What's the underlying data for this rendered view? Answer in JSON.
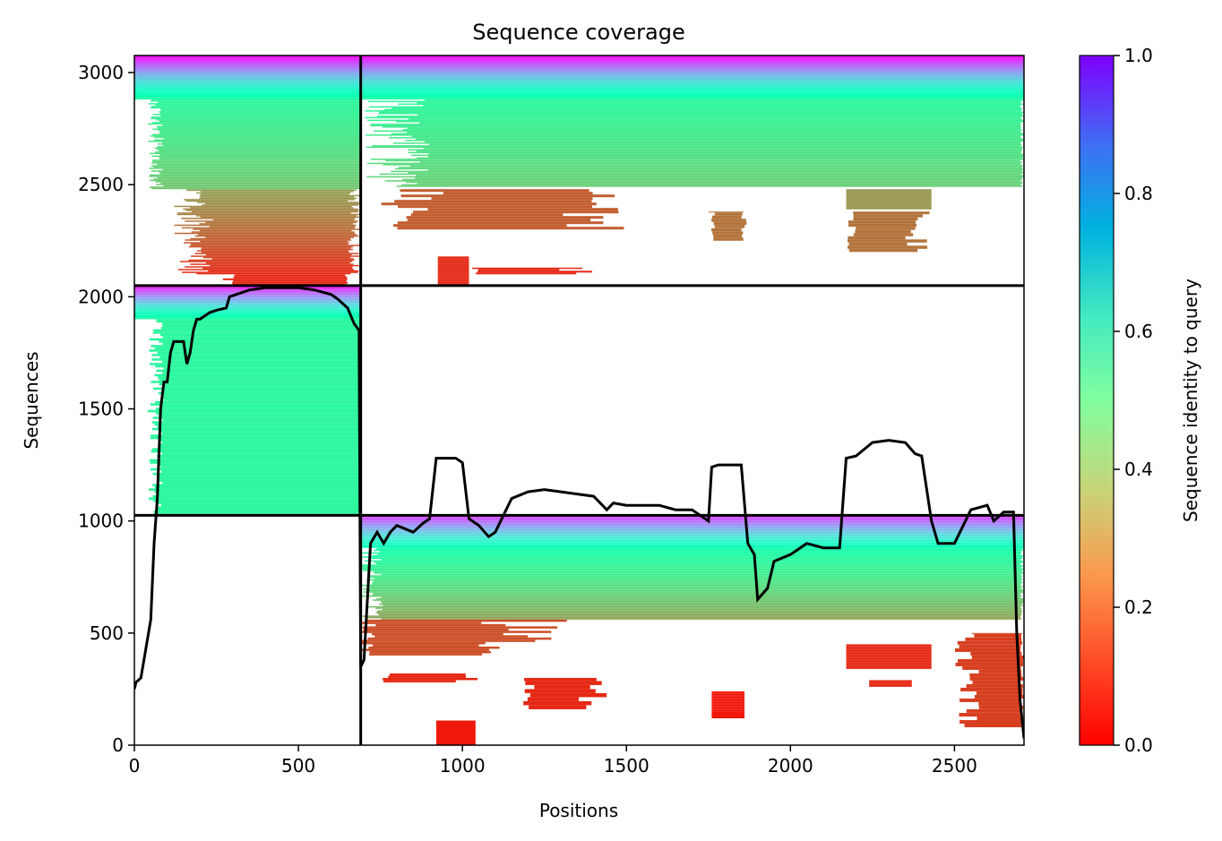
{
  "chart_data": {
    "type": "heatmap",
    "title": "Sequence coverage",
    "xlabel": "Positions",
    "ylabel": "Sequences",
    "xlim": [
      0,
      2712
    ],
    "ylim": [
      0,
      3076
    ],
    "x_ticks": [
      0,
      500,
      1000,
      1500,
      2000,
      2500
    ],
    "y_ticks": [
      0,
      500,
      1000,
      1500,
      2000,
      2500,
      3000
    ],
    "colorbar": {
      "label": "Sequence identity to query",
      "range": [
        0.0,
        1.0
      ],
      "ticks": [
        "0.0",
        "0.2",
        "0.4",
        "0.6",
        "0.8",
        "1.0"
      ],
      "colormap": "rainbow"
    },
    "dividers": {
      "x": [
        690
      ],
      "y": [
        1025,
        2050
      ]
    },
    "coverage_line": {
      "x": [
        0,
        5,
        20,
        50,
        60,
        70,
        80,
        90,
        100,
        110,
        120,
        130,
        140,
        150,
        160,
        170,
        180,
        190,
        200,
        230,
        250,
        280,
        290,
        350,
        400,
        450,
        500,
        550,
        600,
        620,
        650,
        670,
        685,
        690,
        700,
        720,
        740,
        760,
        780,
        800,
        850,
        880,
        900,
        920,
        950,
        980,
        1000,
        1020,
        1030,
        1050,
        1080,
        1100,
        1150,
        1200,
        1250,
        1300,
        1350,
        1400,
        1440,
        1460,
        1500,
        1550,
        1600,
        1650,
        1700,
        1750,
        1760,
        1780,
        1800,
        1850,
        1870,
        1890,
        1900,
        1930,
        1950,
        2000,
        2050,
        2100,
        2150,
        2170,
        2200,
        2250,
        2300,
        2350,
        2380,
        2400,
        2430,
        2450,
        2500,
        2550,
        2600,
        2620,
        2650,
        2680,
        2690,
        2700,
        2712
      ],
      "y": [
        250,
        280,
        300,
        560,
        900,
        1100,
        1500,
        1620,
        1620,
        1750,
        1800,
        1800,
        1800,
        1800,
        1700,
        1750,
        1850,
        1900,
        1900,
        1930,
        1940,
        1950,
        2000,
        2030,
        2040,
        2040,
        2040,
        2030,
        2010,
        1990,
        1950,
        1880,
        1850,
        350,
        380,
        900,
        950,
        900,
        950,
        980,
        950,
        990,
        1010,
        1280,
        1280,
        1280,
        1260,
        1010,
        1000,
        980,
        930,
        950,
        1100,
        1130,
        1140,
        1130,
        1120,
        1110,
        1050,
        1080,
        1070,
        1070,
        1070,
        1050,
        1050,
        1000,
        1240,
        1250,
        1250,
        1250,
        900,
        850,
        650,
        700,
        820,
        850,
        900,
        880,
        880,
        1280,
        1290,
        1350,
        1360,
        1350,
        1300,
        1290,
        1000,
        900,
        900,
        1050,
        1070,
        1000,
        1040,
        1040,
        500,
        200,
        30
      ]
    }
  }
}
